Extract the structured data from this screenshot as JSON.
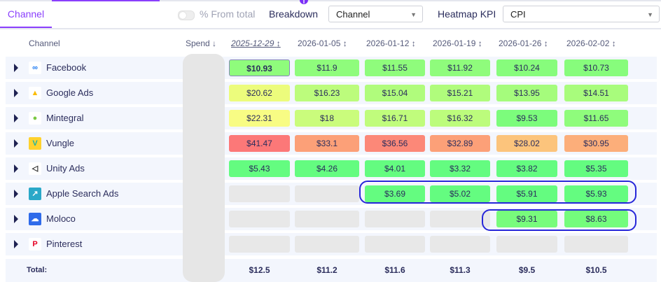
{
  "tabs": [
    {
      "label": "Channel",
      "active": true
    }
  ],
  "controls": {
    "pct_from_total": "% From total",
    "pct_enabled": false,
    "breakdown_label": "Breakdown",
    "breakdown_value": "Channel",
    "kpi_label": "Heatmap KPI",
    "kpi_value": "CPI"
  },
  "table": {
    "channel_header": "Channel",
    "spend_header": "Spend",
    "columns": [
      "2025-12-29",
      "2026-01-05",
      "2026-01-12",
      "2026-01-19",
      "2026-01-26",
      "2026-02-02"
    ],
    "rows": [
      {
        "name": "Facebook",
        "icon": "meta-logo-icon",
        "cells": [
          {
            "v": "$10.93",
            "c": "#8ffc7c"
          },
          {
            "v": "$11.9",
            "c": "#8ffc7c"
          },
          {
            "v": "$11.55",
            "c": "#8ffc7c"
          },
          {
            "v": "$11.92",
            "c": "#8ffc7c"
          },
          {
            "v": "$10.24",
            "c": "#87fc7c"
          },
          {
            "v": "$10.73",
            "c": "#87fc7c"
          }
        ]
      },
      {
        "name": "Google Ads",
        "icon": "google-ads-logo-icon",
        "cells": [
          {
            "v": "$20.62",
            "c": "#ecfc7c"
          },
          {
            "v": "$16.23",
            "c": "#bcfc7c"
          },
          {
            "v": "$15.04",
            "c": "#b0fc7c"
          },
          {
            "v": "$15.21",
            "c": "#b0fc7c"
          },
          {
            "v": "$13.95",
            "c": "#a5fc7c"
          },
          {
            "v": "$14.51",
            "c": "#a8fc7c"
          }
        ]
      },
      {
        "name": "Mintegral",
        "icon": "mintegral-logo-icon",
        "cells": [
          {
            "v": "$22.31",
            "c": "#f8fc84"
          },
          {
            "v": "$18",
            "c": "#cafc7c"
          },
          {
            "v": "$16.71",
            "c": "#c0fc7c"
          },
          {
            "v": "$16.32",
            "c": "#bcfc7c"
          },
          {
            "v": "$9.53",
            "c": "#7cfc7c"
          },
          {
            "v": "$11.65",
            "c": "#8ffc7c"
          }
        ]
      },
      {
        "name": "Vungle",
        "icon": "vungle-logo-icon",
        "cells": [
          {
            "v": "$41.47",
            "c": "#fc7878"
          },
          {
            "v": "$33.1",
            "c": "#fca078"
          },
          {
            "v": "$36.56",
            "c": "#fc8878"
          },
          {
            "v": "$32.89",
            "c": "#fca078"
          },
          {
            "v": "$28.02",
            "c": "#fcc47c"
          },
          {
            "v": "$30.95",
            "c": "#fcae7a"
          }
        ]
      },
      {
        "name": "Unity Ads",
        "icon": "unity-logo-icon",
        "cells": [
          {
            "v": "$5.43",
            "c": "#64fc80"
          },
          {
            "v": "$4.26",
            "c": "#64fc80"
          },
          {
            "v": "$4.01",
            "c": "#64fc80"
          },
          {
            "v": "$3.32",
            "c": "#64fc80"
          },
          {
            "v": "$3.82",
            "c": "#64fc80"
          },
          {
            "v": "$5.35",
            "c": "#64fc80"
          }
        ]
      },
      {
        "name": "Apple Search Ads",
        "icon": "apple-search-ads-logo-icon",
        "cells": [
          {
            "v": "",
            "c": "#e8e8e8"
          },
          {
            "v": "",
            "c": "#e8e8e8"
          },
          {
            "v": "$3.69",
            "c": "#64fc80"
          },
          {
            "v": "$5.02",
            "c": "#64fc80"
          },
          {
            "v": "$5.91",
            "c": "#64fc80"
          },
          {
            "v": "$5.93",
            "c": "#64fc80"
          }
        ]
      },
      {
        "name": "Moloco",
        "icon": "moloco-logo-icon",
        "cells": [
          {
            "v": "",
            "c": "#e8e8e8"
          },
          {
            "v": "",
            "c": "#e8e8e8"
          },
          {
            "v": "",
            "c": "#e8e8e8"
          },
          {
            "v": "",
            "c": "#e8e8e8"
          },
          {
            "v": "$9.31",
            "c": "#78fc7c"
          },
          {
            "v": "$8.63",
            "c": "#74fc7c"
          }
        ]
      },
      {
        "name": "Pinterest",
        "icon": "pinterest-logo-icon",
        "cells": [
          {
            "v": "",
            "c": "#e8e8e8"
          },
          {
            "v": "",
            "c": "#e8e8e8"
          },
          {
            "v": "",
            "c": "#e8e8e8"
          },
          {
            "v": "",
            "c": "#e8e8e8"
          },
          {
            "v": "",
            "c": "#e8e8e8"
          },
          {
            "v": "",
            "c": "#e8e8e8"
          }
        ]
      }
    ],
    "total_label": "Total:",
    "totals": [
      "$12.5",
      "$11.2",
      "$11.6",
      "$11.3",
      "$9.5",
      "$10.5"
    ]
  },
  "colors": {
    "accent": "#8a3ffc",
    "highlight": "#2727d9",
    "empty": "#e8e8e8"
  }
}
